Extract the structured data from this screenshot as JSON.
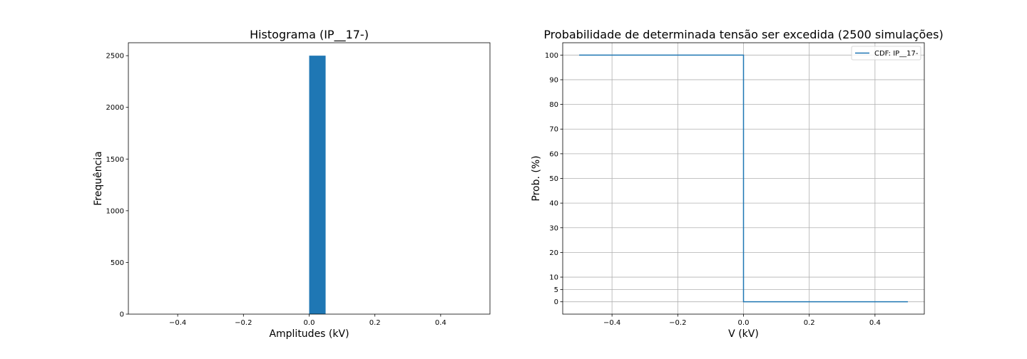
{
  "chart_data": [
    {
      "type": "bar",
      "title": "Histograma (IP__17-)",
      "xlabel": "Amplitudes (kV)",
      "ylabel": "Frequência",
      "xlim": [
        -0.55,
        0.55
      ],
      "ylim": [
        0,
        2625
      ],
      "xticks": [
        -0.4,
        -0.2,
        0.0,
        0.2,
        0.4
      ],
      "xtick_labels": [
        "−0.4",
        "−0.2",
        "0.0",
        "0.2",
        "0.4"
      ],
      "yticks": [
        0,
        500,
        1000,
        1500,
        2000,
        2500
      ],
      "ytick_labels": [
        "0",
        "500",
        "1000",
        "1500",
        "2000",
        "2500"
      ],
      "grid": false,
      "color": "#1f77b4",
      "bins": [
        {
          "x0": 0.0,
          "x1": 0.05,
          "value": 2500
        }
      ]
    },
    {
      "type": "line",
      "title": "Probabilidade de determinada tensão ser excedida (2500 simulações)",
      "xlabel": "V (kV)",
      "ylabel": "Prob. (%)",
      "xlim": [
        -0.55,
        0.55
      ],
      "ylim": [
        -5,
        105
      ],
      "xticks": [
        -0.4,
        -0.2,
        0.0,
        0.2,
        0.4
      ],
      "xtick_labels": [
        "−0.4",
        "−0.2",
        "0.0",
        "0.2",
        "0.4"
      ],
      "yticks": [
        0,
        5,
        10,
        20,
        30,
        40,
        50,
        60,
        70,
        80,
        90,
        100
      ],
      "ytick_labels": [
        "0",
        "5",
        "10",
        "20",
        "30",
        "40",
        "50",
        "60",
        "70",
        "80",
        "90",
        "100"
      ],
      "grid": true,
      "legend_position": "top-right",
      "series": [
        {
          "name": "CDF: IP__17-",
          "color": "#1f77b4",
          "x": [
            -0.5,
            0.0,
            0.0,
            0.5
          ],
          "y": [
            100,
            100,
            0,
            0
          ]
        }
      ]
    }
  ]
}
